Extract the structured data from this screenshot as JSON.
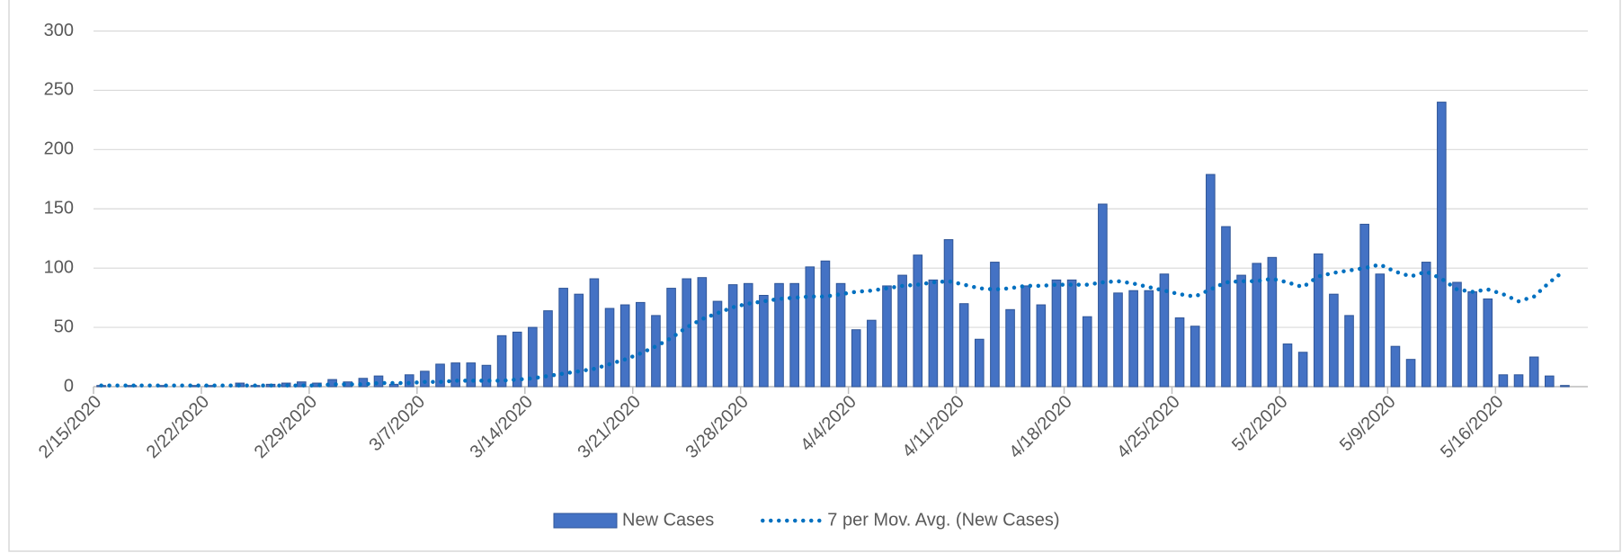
{
  "chart_data": {
    "type": "bar_line",
    "categories": [
      "2/15/2020",
      null,
      null,
      null,
      null,
      null,
      null,
      "2/22/2020",
      null,
      null,
      null,
      null,
      null,
      null,
      "2/29/2020",
      null,
      null,
      null,
      null,
      null,
      null,
      "3/7/2020",
      null,
      null,
      null,
      null,
      null,
      null,
      "3/14/2020",
      null,
      null,
      null,
      null,
      null,
      null,
      "3/21/2020",
      null,
      null,
      null,
      null,
      null,
      null,
      "3/28/2020",
      null,
      null,
      null,
      null,
      null,
      null,
      "4/4/2020",
      null,
      null,
      null,
      null,
      null,
      null,
      "4/11/2020",
      null,
      null,
      null,
      null,
      null,
      null,
      "4/18/2020",
      null,
      null,
      null,
      null,
      null,
      null,
      "4/25/2020",
      null,
      null,
      null,
      null,
      null,
      null,
      "5/2/2020",
      null,
      null,
      null,
      null,
      null,
      null,
      "5/9/2020",
      null,
      null,
      null,
      null,
      null,
      null,
      "5/16/2020",
      null,
      null,
      null,
      null
    ],
    "series": [
      {
        "name": "New Cases",
        "type": "bar",
        "color": "#4472c4",
        "values": [
          1,
          0,
          1,
          0,
          1,
          0,
          1,
          1,
          0,
          3,
          1,
          2,
          3,
          4,
          3,
          6,
          4,
          7,
          9,
          2,
          10,
          13,
          19,
          20,
          20,
          18,
          43,
          46,
          50,
          64,
          83,
          78,
          91,
          66,
          69,
          71,
          60,
          83,
          91,
          92,
          72,
          86,
          87,
          77,
          87,
          87,
          101,
          106,
          87,
          48,
          56,
          85,
          94,
          111,
          90,
          124,
          70,
          40,
          105,
          65,
          85,
          69,
          90,
          90,
          59,
          154,
          79,
          81,
          81,
          95,
          58,
          51,
          179,
          135,
          94,
          104,
          109,
          36,
          29,
          112,
          78,
          60,
          137,
          95,
          34,
          23,
          105,
          240,
          88,
          80,
          74,
          10,
          10,
          25,
          9,
          1
        ]
      },
      {
        "name": "7 per Mov. Avg. (New Cases)",
        "type": "line",
        "color": "#0070c0",
        "values": [
          1,
          1,
          1,
          1,
          1,
          1,
          1,
          1,
          1,
          1,
          1,
          1,
          1,
          1,
          1,
          2,
          2,
          2,
          3,
          3,
          3,
          4,
          4,
          5,
          5,
          5,
          5,
          6,
          7,
          9,
          11,
          13,
          15,
          19,
          23,
          28,
          34,
          41,
          50,
          57,
          62,
          67,
          70,
          72,
          74,
          75,
          76,
          76,
          78,
          80,
          81,
          83,
          85,
          86,
          88,
          89,
          86,
          83,
          82,
          83,
          85,
          85,
          86,
          86,
          86,
          88,
          89,
          87,
          84,
          81,
          78,
          76,
          82,
          88,
          89,
          89,
          91,
          88,
          84,
          93,
          96,
          98,
          100,
          103,
          97,
          93,
          97,
          91,
          82,
          80,
          82,
          78,
          72,
          76,
          88,
          98
        ]
      }
    ],
    "ylim": [
      0,
      300
    ],
    "yticks": [
      0,
      50,
      100,
      150,
      200,
      250,
      300
    ],
    "grid": true,
    "legend": "bottom"
  }
}
